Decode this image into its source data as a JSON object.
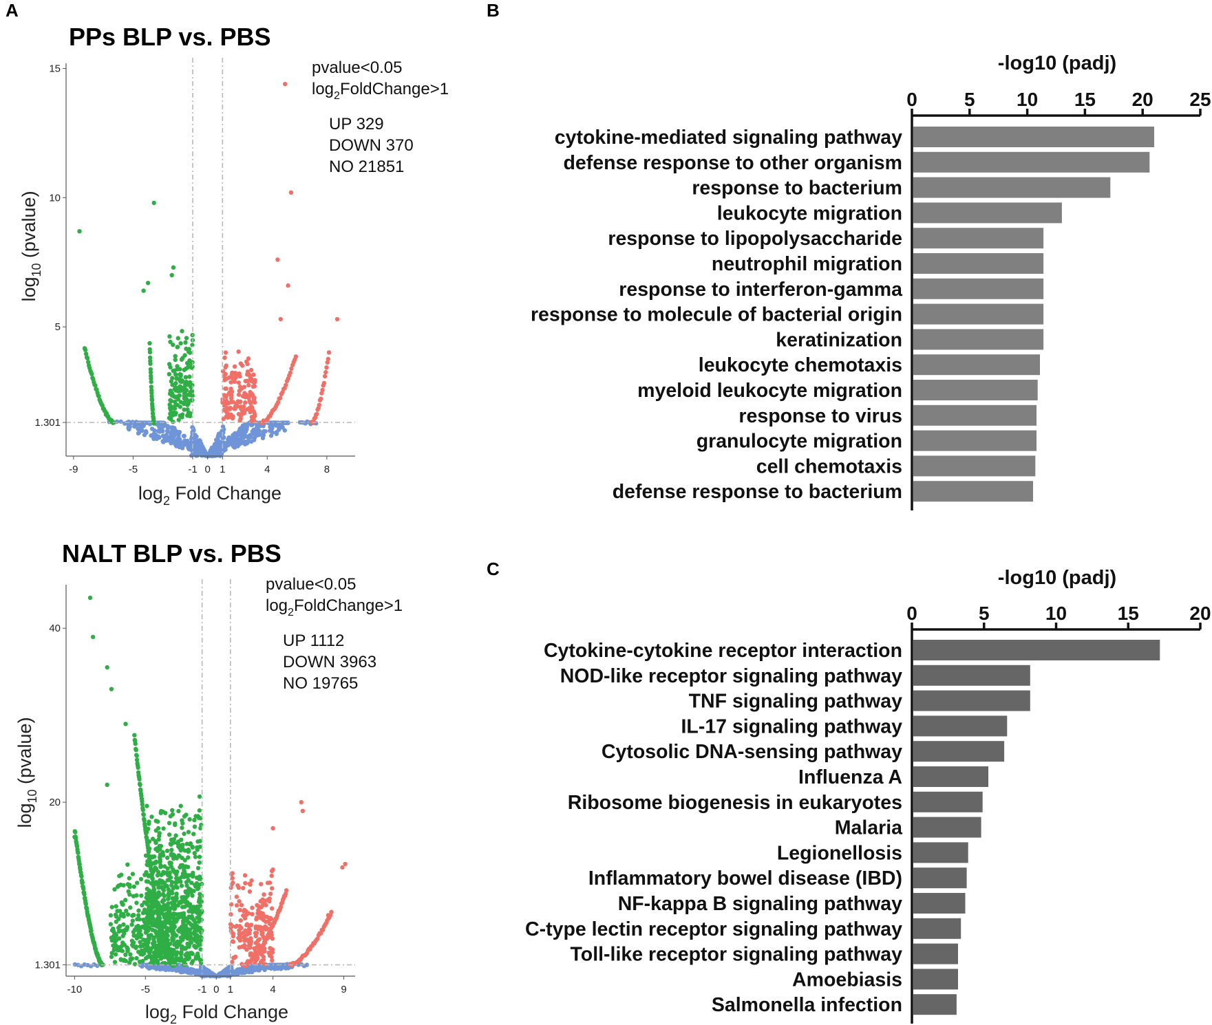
{
  "panels": {
    "a": "A",
    "b": "B",
    "c": "C"
  },
  "chart_data": [
    {
      "type": "scatter",
      "panel": "A-top",
      "title": "PPs  BLP vs. PBS",
      "xlabel": "log2 Fold Change",
      "ylabel": "log10 (pvalue)",
      "annotation": {
        "filter_pvalue": "pvalue<0.05",
        "filter_fc_base": "log",
        "filter_fc_sub": "2",
        "filter_fc_rest": "FoldChange>1",
        "up": "UP 329",
        "down": "DOWN 370",
        "no": "NO 21851"
      },
      "x_ticks": [
        "-9",
        "-5",
        "-1",
        "0",
        "1",
        "4",
        "8"
      ],
      "x_tick_values": [
        -9,
        -5,
        -1,
        0,
        1,
        4,
        8
      ],
      "y_ticks": [
        "1.301",
        "5",
        "10",
        "15"
      ],
      "y_tick_values": [
        1.301,
        5,
        10,
        15
      ],
      "xlim": [
        -9.5,
        9.9
      ],
      "ylim": [
        0,
        15.2
      ],
      "threshold_y": 1.301,
      "threshold_x": [
        -1,
        1
      ],
      "colors": {
        "up": "#f07068",
        "down": "#2fae45",
        "no": "#6f94d8"
      },
      "outliers_up": [
        [
          5.2,
          14.4
        ],
        [
          5.6,
          10.2
        ],
        [
          4.7,
          7.6
        ],
        [
          5.4,
          6.6
        ],
        [
          4.9,
          5.3
        ],
        [
          8.7,
          5.3
        ]
      ],
      "outliers_down": [
        [
          -8.6,
          8.7
        ],
        [
          -3.6,
          9.8
        ],
        [
          -2.3,
          7.3
        ],
        [
          -2.4,
          7.0
        ],
        [
          -4.0,
          6.7
        ],
        [
          -4.3,
          6.4
        ]
      ],
      "summary": {
        "up": 329,
        "down": 370,
        "no": 21851
      }
    },
    {
      "type": "scatter",
      "panel": "A-bottom",
      "title": "NALT   BLP vs. PBS",
      "xlabel": "log2 Fold Change",
      "ylabel": "log10 (pvalue)",
      "annotation": {
        "filter_pvalue": "pvalue<0.05",
        "filter_fc_base": "log",
        "filter_fc_sub": "2",
        "filter_fc_rest": "FoldChange>1",
        "up": "UP 1112",
        "down": "DOWN 3963",
        "no": "NO 19765"
      },
      "x_ticks": [
        "-10",
        "-5",
        "-1",
        "0",
        "1",
        "4",
        "9"
      ],
      "x_tick_values": [
        -10,
        -5,
        -1,
        0,
        1,
        4,
        9
      ],
      "y_ticks": [
        "1.301",
        "20",
        "40"
      ],
      "y_tick_values": [
        1.301,
        20,
        40
      ],
      "xlim": [
        -10.6,
        9.8
      ],
      "ylim": [
        0,
        45
      ],
      "threshold_y": 1.301,
      "threshold_x": [
        -1,
        1
      ],
      "colors": {
        "up": "#f07068",
        "down": "#2fae45",
        "no": "#6f94d8"
      },
      "outliers_up": [
        [
          6.0,
          20.0
        ],
        [
          6.1,
          19.0
        ],
        [
          4.0,
          17.0
        ],
        [
          8.9,
          12.5
        ],
        [
          9.1,
          12.9
        ],
        [
          7.9,
          7.0
        ]
      ],
      "outliers_down": [
        [
          -8.9,
          43.5
        ],
        [
          -8.7,
          39.0
        ],
        [
          -7.7,
          35.5
        ],
        [
          -7.4,
          33.0
        ],
        [
          -6.4,
          29.0
        ],
        [
          -7.7,
          22.0
        ],
        [
          -10.0,
          16.0
        ]
      ],
      "summary": {
        "up": 1112,
        "down": 3963,
        "no": 19765
      }
    },
    {
      "type": "bar",
      "orientation": "horizontal",
      "panel": "B",
      "xlabel": "-log10 (padj)",
      "xlim": [
        0,
        25
      ],
      "ticks": [
        0,
        5,
        10,
        15,
        20,
        25
      ],
      "tick_labels": [
        "0",
        "5",
        "10",
        "15",
        "20",
        "25"
      ],
      "bar_color": "#808080",
      "categories": [
        "cytokine-mediated signaling pathway",
        "defense response to other organism",
        "response to bacterium",
        "leukocyte migration",
        "response to lipopolysaccharide",
        "neutrophil migration",
        "response to interferon-gamma",
        "response to molecule of bacterial origin",
        "keratinization",
        "leukocyte chemotaxis",
        "myeloid leukocyte migration",
        "response to virus",
        "granulocyte migration",
        "cell chemotaxis",
        "defense response to bacterium"
      ],
      "values": [
        21.0,
        20.6,
        17.2,
        13.0,
        11.4,
        11.4,
        11.4,
        11.4,
        11.4,
        11.1,
        10.9,
        10.8,
        10.8,
        10.7,
        10.5
      ]
    },
    {
      "type": "bar",
      "orientation": "horizontal",
      "panel": "C",
      "xlabel": "-log10 (padj)",
      "xlim": [
        0,
        20
      ],
      "ticks": [
        0,
        5,
        10,
        15,
        20
      ],
      "tick_labels": [
        "0",
        "5",
        "10",
        "15",
        "20"
      ],
      "bar_color": "#666666",
      "categories": [
        "Cytokine-cytokine receptor interaction",
        "NOD-like receptor signaling pathway",
        "TNF signaling pathway",
        "IL-17 signaling pathway",
        "Cytosolic DNA-sensing pathway",
        "Influenza A",
        "Ribosome biogenesis in eukaryotes",
        "Malaria",
        "Legionellosis",
        "Inflammatory bowel disease (IBD)",
        "NF-kappa B signaling pathway",
        "C-type lectin receptor signaling pathway",
        "Toll-like receptor signaling pathway",
        "Amoebiasis",
        "Salmonella infection"
      ],
      "values": [
        17.2,
        8.2,
        8.2,
        6.6,
        6.4,
        5.3,
        4.9,
        4.8,
        3.9,
        3.8,
        3.7,
        3.4,
        3.2,
        3.2,
        3.1
      ]
    }
  ]
}
